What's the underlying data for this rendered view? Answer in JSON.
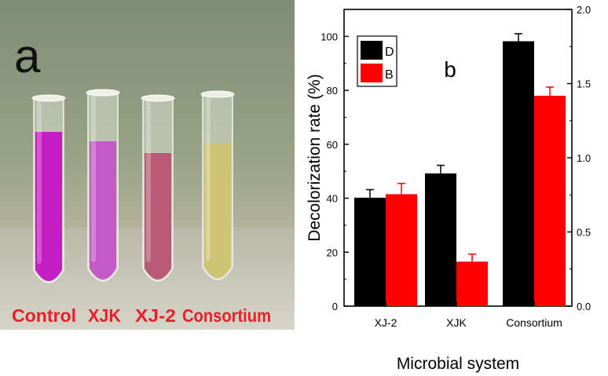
{
  "panel_a": {
    "letter": "a",
    "tube_labels": [
      "Control",
      "XJK",
      "XJ-2",
      "Consortium"
    ],
    "tube_colors": [
      "#c41ec4",
      "#c45ac8",
      "#b85a78",
      "#cfc474"
    ],
    "label_color": "#e8202a",
    "background_wall": "#8e9a7c",
    "background_floor": "#b8b6a8"
  },
  "chart_data": {
    "type": "bar",
    "panel_letter": "b",
    "categories": [
      "XJ-2",
      "XJK",
      "Consortium"
    ],
    "series": [
      {
        "name": "D",
        "values": [
          40.2,
          49.2,
          98.2
        ],
        "errors": [
          3.0,
          3.0,
          2.8
        ],
        "color": "#000000"
      },
      {
        "name": "B",
        "values": [
          41.5,
          16.5,
          78.0
        ],
        "errors": [
          4.0,
          2.8,
          3.2
        ],
        "color": "#ff0000"
      }
    ],
    "xlabel": "Microbial system",
    "ylabel": "Decolorization rate (%)",
    "ylim": [
      0,
      110
    ],
    "yticks": [
      "0",
      "20",
      "40",
      "60",
      "80",
      "100"
    ],
    "y2lim": [
      0,
      2.0
    ],
    "y2ticks": [
      "0.0",
      "0.5",
      "1.0",
      "1.5",
      "2.0"
    ],
    "legend_position": "top-left",
    "grid": false
  }
}
